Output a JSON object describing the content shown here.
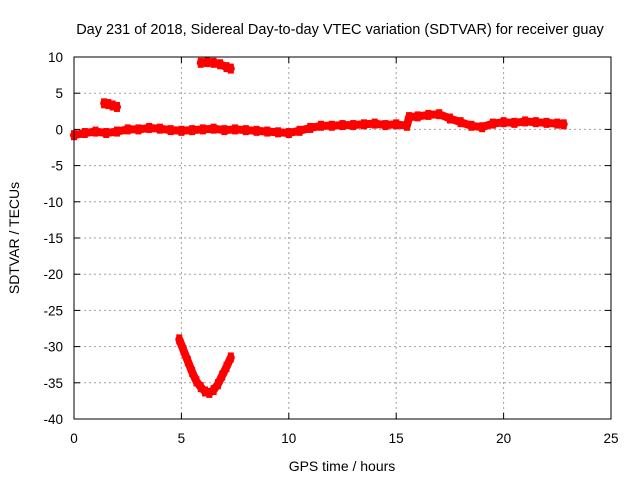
{
  "chart_data": {
    "type": "scatter",
    "title": "Day 231 of 2018, Sidereal Day-to-day VTEC variation (SDTVAR) for receiver guay",
    "xlabel": "GPS time / hours",
    "ylabel": "SDTVAR / TECUs",
    "xlim": [
      0,
      25
    ],
    "ylim": [
      -40,
      10
    ],
    "xticks": [
      0,
      5,
      10,
      15,
      20,
      25
    ],
    "yticks": [
      10,
      5,
      0,
      -5,
      -10,
      -15,
      -20,
      -25,
      -30,
      -35,
      -40
    ],
    "grid": true,
    "series": [
      {
        "name": "SDTVAR",
        "color": "#ff0000",
        "segments": [
          {
            "name": "main-band",
            "x": [
              0.0,
              0.5,
              1.0,
              1.5,
              2.0,
              2.5,
              3.0,
              3.5,
              4.0,
              4.5,
              5.0,
              5.5,
              6.0,
              6.5,
              7.0,
              7.5,
              8.0,
              8.5,
              9.0,
              9.5,
              10.0,
              10.5,
              11.0,
              11.5,
              12.0,
              12.5,
              13.0,
              13.5,
              14.0,
              14.5,
              15.0,
              15.5,
              15.6,
              16.0,
              16.5,
              17.0,
              17.5,
              18.0,
              18.5,
              19.0,
              19.5,
              20.0,
              20.5,
              21.0,
              21.5,
              22.0,
              22.5,
              22.8
            ],
            "y": [
              -0.8,
              -0.5,
              -0.3,
              -0.5,
              -0.3,
              0.0,
              0.0,
              0.2,
              0.1,
              -0.1,
              -0.2,
              -0.1,
              0.0,
              0.1,
              -0.1,
              0.0,
              -0.1,
              -0.2,
              -0.3,
              -0.4,
              -0.5,
              -0.2,
              0.2,
              0.5,
              0.5,
              0.6,
              0.6,
              0.7,
              0.8,
              0.6,
              0.7,
              0.5,
              1.7,
              1.8,
              2.0,
              2.1,
              1.5,
              1.0,
              0.5,
              0.3,
              0.8,
              1.0,
              0.9,
              1.1,
              1.0,
              0.9,
              0.8,
              0.7
            ]
          },
          {
            "name": "short-arc-near-3",
            "x": [
              1.4,
              1.6,
              1.8,
              2.0
            ],
            "y": [
              3.6,
              3.5,
              3.3,
              3.1
            ]
          },
          {
            "name": "short-arc-near-9",
            "x": [
              5.9,
              6.2,
              6.5,
              6.8,
              7.1,
              7.3
            ],
            "y": [
              9.2,
              9.3,
              9.2,
              9.0,
              8.6,
              8.4
            ]
          },
          {
            "name": "u-shaped-arc",
            "x": [
              4.9,
              5.1,
              5.3,
              5.5,
              5.7,
              5.9,
              6.1,
              6.3,
              6.5,
              6.7,
              6.9,
              7.1,
              7.3
            ],
            "y": [
              -29.0,
              -30.5,
              -32.0,
              -33.5,
              -34.8,
              -35.6,
              -36.2,
              -36.4,
              -36.0,
              -35.2,
              -34.0,
              -32.8,
              -31.5
            ]
          }
        ]
      }
    ]
  }
}
